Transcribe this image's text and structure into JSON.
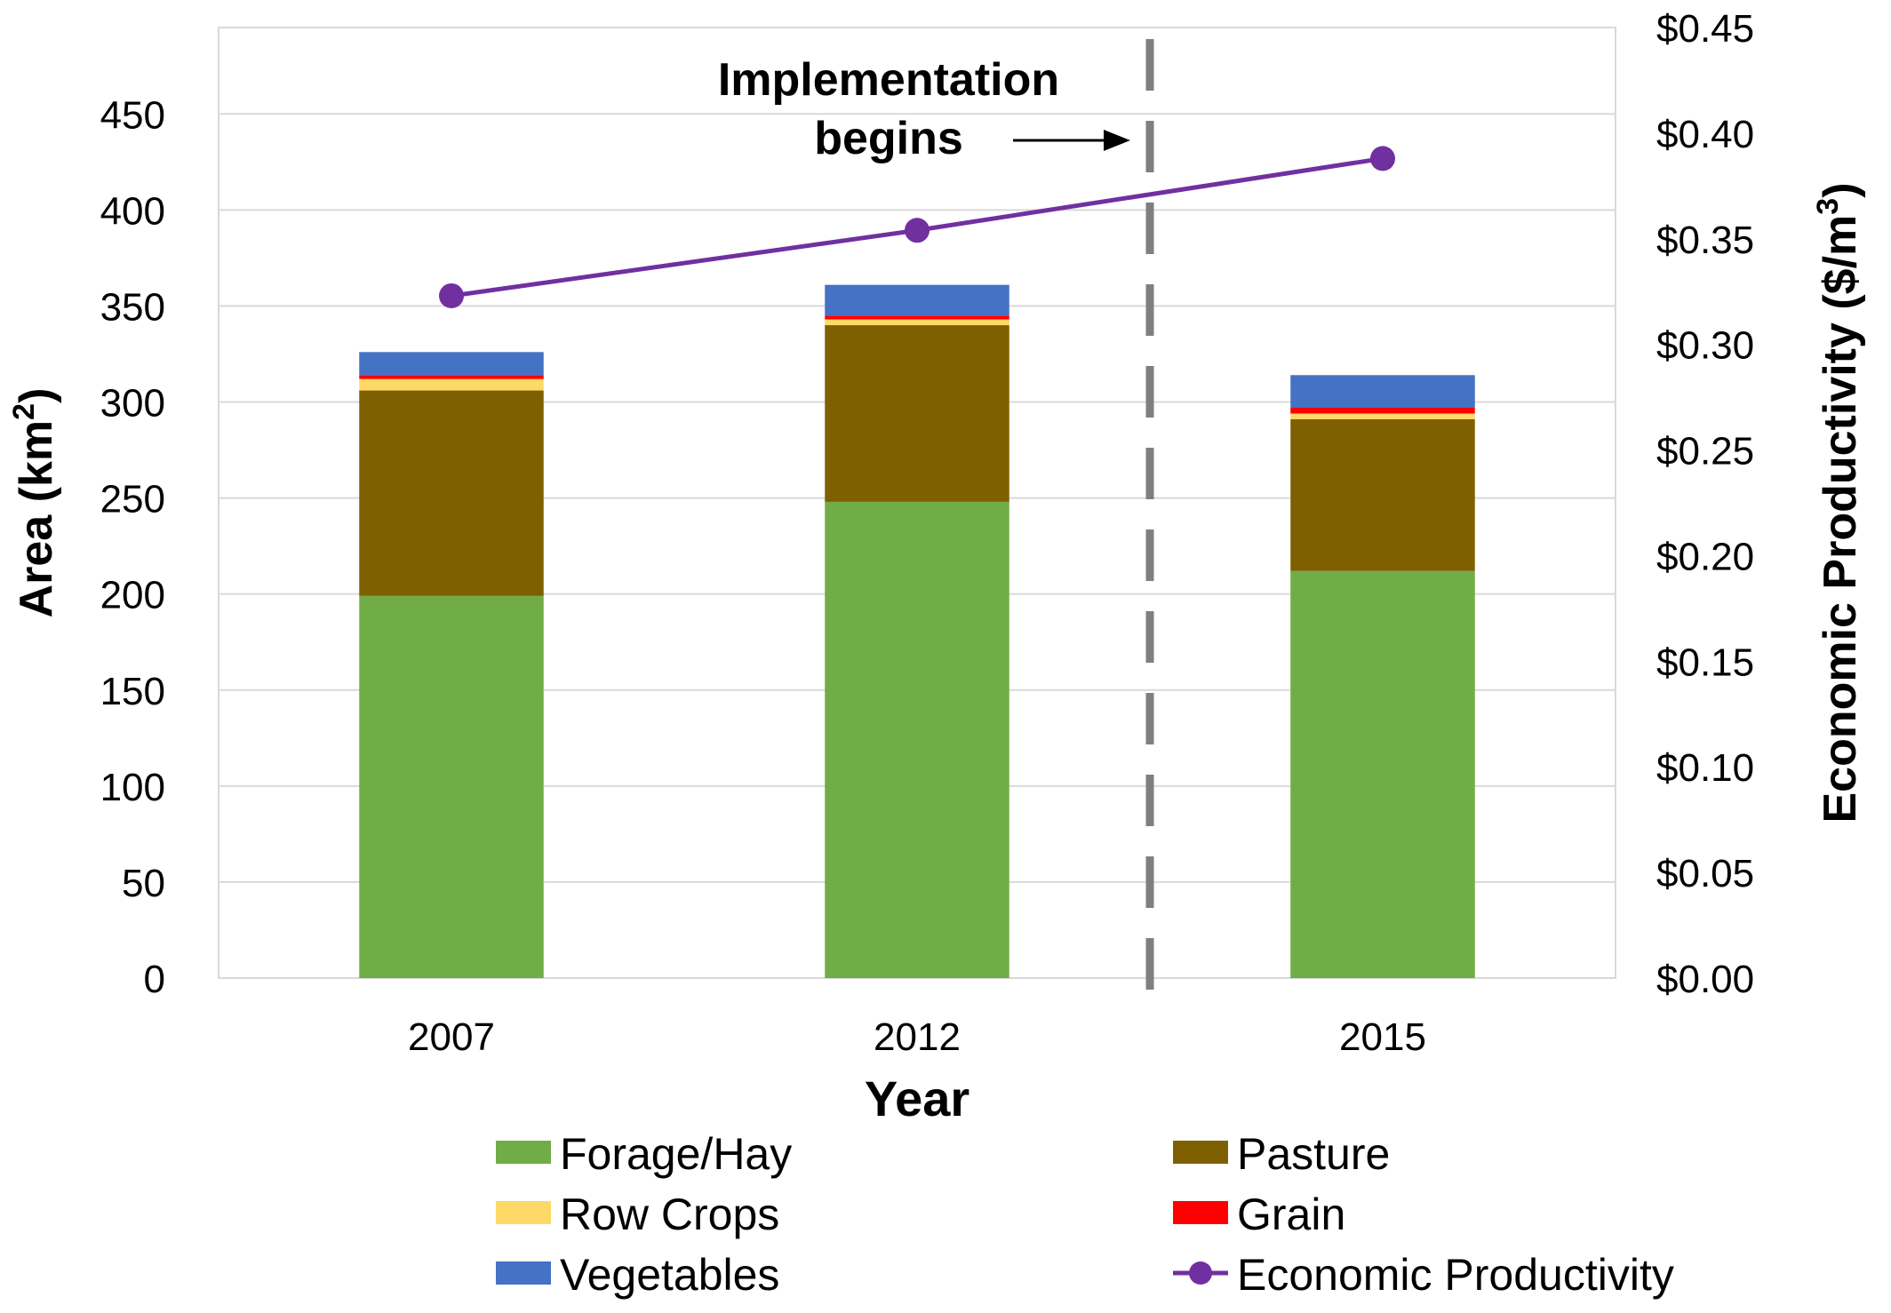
{
  "chart_data": {
    "type": "bar",
    "stacked": true,
    "categories": [
      "2007",
      "2012",
      "2015"
    ],
    "series": [
      {
        "name": "Forage/Hay",
        "color": "#70ad47",
        "values": [
          199,
          248,
          212
        ]
      },
      {
        "name": "Pasture",
        "color": "#7f6000",
        "values": [
          107,
          92,
          79
        ]
      },
      {
        "name": "Row Crops",
        "color": "#ffd966",
        "values": [
          6,
          3,
          3
        ]
      },
      {
        "name": "Grain",
        "color": "#ff0000",
        "values": [
          2,
          2,
          3
        ]
      },
      {
        "name": "Vegetables",
        "color": "#4472c4",
        "values": [
          12,
          16,
          17
        ]
      }
    ],
    "line_series": {
      "name": "Economic Productivity",
      "color": "#7030a0",
      "axis": "secondary",
      "values": [
        0.323,
        0.354,
        0.388
      ]
    },
    "xlabel": "Year",
    "ylabel": "Area (km",
    "ylabel_sup": "2",
    "ylabel_end": ")",
    "y2label": "Economic Productivity ($/m",
    "y2label_sup": "3",
    "y2label_end": ")",
    "ylim": [
      0,
      495
    ],
    "yticks": [
      0,
      50,
      100,
      150,
      200,
      250,
      300,
      350,
      400,
      450
    ],
    "y2lim": [
      0,
      0.45
    ],
    "y2ticks": [
      "$0.00",
      "$0.05",
      "$0.10",
      "$0.15",
      "$0.20",
      "$0.25",
      "$0.30",
      "$0.35",
      "$0.40",
      "$0.45"
    ],
    "grid": true,
    "legend_position": "bottom",
    "annotation": {
      "lines": [
        "Implementation",
        "begins"
      ],
      "x_position": 2013.5
    }
  }
}
